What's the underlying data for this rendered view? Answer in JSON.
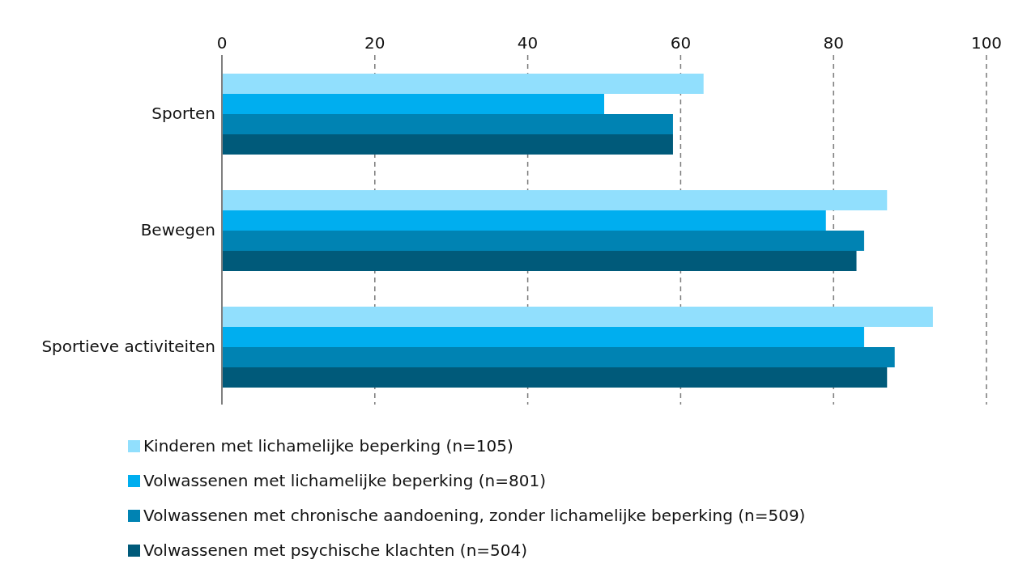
{
  "chart_data": {
    "type": "bar",
    "orientation": "horizontal",
    "categories": [
      "Sporten",
      "Bewegen",
      "Sportieve activiteiten"
    ],
    "series": [
      {
        "name": "Kinderen met lichamelijke beperking (n=105)",
        "color": "#91dffd",
        "values": [
          63,
          87,
          93
        ]
      },
      {
        "name": "Volwassenen met lichamelijke beperking (n=801)",
        "color": "#00aeef",
        "values": [
          50,
          79,
          84
        ]
      },
      {
        "name": "Volwassenen met chronische aandoening, zonder lichamelijke beperking (n=509)",
        "color": "#0083b3",
        "values": [
          59,
          84,
          88
        ]
      },
      {
        "name": "Volwassenen met psychische klachten (n=504)",
        "color": "#005a7a",
        "values": [
          59,
          83,
          87
        ]
      }
    ],
    "xlim": [
      0,
      100
    ],
    "xticks": [
      0,
      20,
      40,
      60,
      80,
      100
    ],
    "grid": "x",
    "legend": "bottom"
  }
}
